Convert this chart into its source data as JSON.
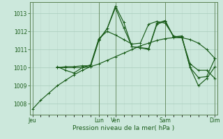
{
  "bg_color": "#cce8dc",
  "grid_color_major": "#a8ccbc",
  "grid_color_minor": "#bcd8cc",
  "line_color": "#1a5c1a",
  "xlabel": "Pression niveau de la mer( hPa )",
  "ylim": [
    1007.4,
    1013.6
  ],
  "yticks": [
    1008,
    1009,
    1010,
    1011,
    1012,
    1013
  ],
  "xlim": [
    -0.3,
    22.3
  ],
  "day_positions": [
    0,
    8,
    10,
    16,
    22
  ],
  "day_labels": [
    "Jeu",
    "Lun",
    "Ven",
    "Sam",
    "Dim"
  ],
  "s1_x": [
    0,
    1,
    2,
    3,
    4,
    5,
    6,
    7,
    8,
    9,
    10,
    11,
    12,
    13,
    14,
    15,
    16,
    17,
    18,
    19,
    20,
    21,
    22
  ],
  "s1_y": [
    1007.7,
    1008.2,
    1008.6,
    1009.0,
    1009.3,
    1009.6,
    1009.85,
    1010.05,
    1010.2,
    1010.4,
    1010.6,
    1010.8,
    1011.0,
    1011.2,
    1011.35,
    1011.5,
    1011.6,
    1011.65,
    1011.65,
    1011.55,
    1011.35,
    1011.0,
    1010.5
  ],
  "s2_x": [
    3,
    4,
    5,
    6,
    7,
    8,
    9,
    10,
    11,
    12,
    13,
    14,
    15,
    16,
    17,
    18,
    19,
    20,
    21,
    22
  ],
  "s2_y": [
    1010.0,
    1010.05,
    1010.05,
    1010.1,
    1010.1,
    1011.55,
    1012.15,
    1013.3,
    1012.2,
    1011.15,
    1011.1,
    1011.05,
    1012.45,
    1012.6,
    1011.7,
    1011.7,
    1010.0,
    1009.0,
    1009.4,
    1010.05
  ],
  "s3_x": [
    3,
    4,
    5,
    6,
    7,
    8,
    9,
    10,
    11,
    12,
    13,
    14,
    15,
    16,
    17,
    18,
    19,
    20,
    21,
    22
  ],
  "s3_y": [
    1010.0,
    1010.0,
    1010.0,
    1010.0,
    1010.05,
    1011.5,
    1012.15,
    1013.4,
    1012.5,
    1011.15,
    1011.1,
    1011.0,
    1012.4,
    1012.55,
    1011.7,
    1011.75,
    1010.0,
    1009.45,
    1009.5,
    1010.5
  ],
  "s4_x": [
    3,
    4,
    5,
    6,
    7,
    8,
    9,
    10,
    11,
    12,
    13,
    14,
    15,
    16,
    17,
    18,
    19,
    20,
    21,
    22
  ],
  "s4_y": [
    1010.05,
    1009.85,
    1009.7,
    1010.0,
    1010.15,
    1011.6,
    1012.0,
    1011.8,
    1011.55,
    1011.3,
    1011.35,
    1012.4,
    1012.55,
    1012.45,
    1011.75,
    1011.65,
    1010.2,
    1009.85,
    1009.85,
    1009.4
  ]
}
